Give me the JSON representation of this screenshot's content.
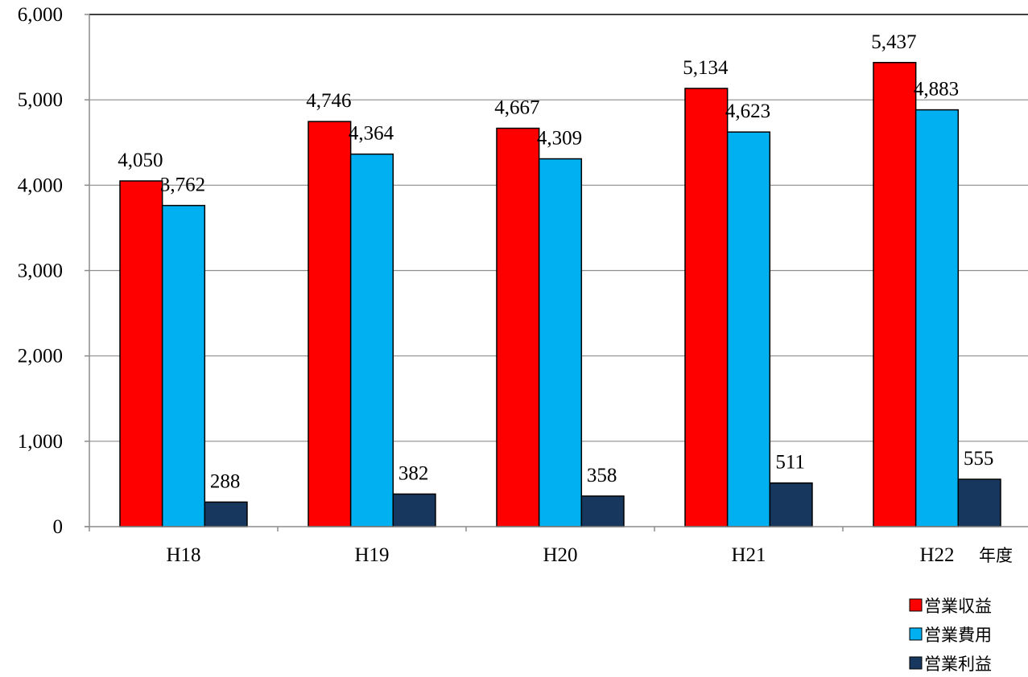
{
  "chart_data": {
    "type": "bar",
    "categories": [
      "H18",
      "H19",
      "H20",
      "H21",
      "H22"
    ],
    "series": [
      {
        "name": "営業収益",
        "color": "#ff0000",
        "values": [
          4050,
          4746,
          4667,
          5134,
          5437
        ]
      },
      {
        "name": "営業費用",
        "color": "#00b0f0",
        "values": [
          3762,
          4364,
          4309,
          4623,
          4883
        ]
      },
      {
        "name": "営業利益",
        "color": "#17375e",
        "values": [
          288,
          382,
          358,
          511,
          555
        ]
      }
    ],
    "data_labels": [
      [
        "4,050",
        "4,746",
        "4,667",
        "5,134",
        "5,437"
      ],
      [
        "3,762",
        "4,364",
        "4,309",
        "4,623",
        "4,883"
      ],
      [
        "288",
        "382",
        "358",
        "511",
        "555"
      ]
    ],
    "y_ticks": [
      "0",
      "1,000",
      "2,000",
      "3,000",
      "4,000",
      "5,000",
      "6,000"
    ],
    "ylim": [
      0,
      6000
    ],
    "xlabel": "年度",
    "ylabel": "",
    "grid": true,
    "legend_position": "bottom-right"
  }
}
